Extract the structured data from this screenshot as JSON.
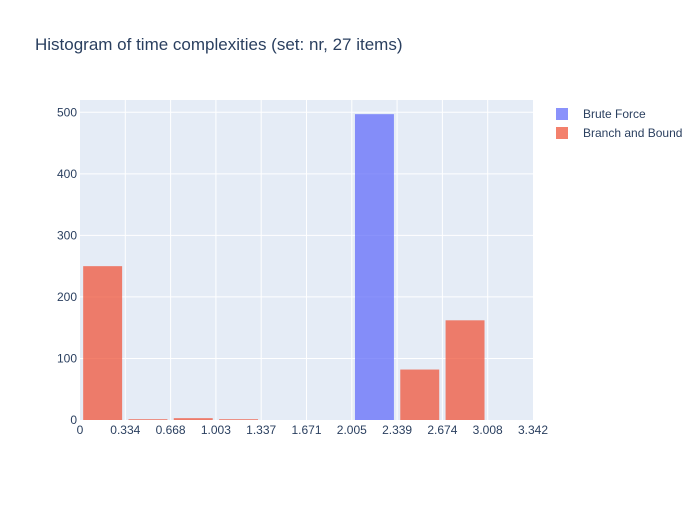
{
  "chart_data": {
    "type": "bar",
    "title": "Histogram of time complexities (set: nr, 27 items)",
    "xlabel": "",
    "ylabel": "",
    "xlim": [
      0,
      3.342
    ],
    "ylim": [
      0,
      520
    ],
    "x_ticks": [
      "0",
      "0.334",
      "0.668",
      "1.003",
      "1.337",
      "1.671",
      "2.005",
      "2.339",
      "2.674",
      "3.008",
      "3.342"
    ],
    "y_ticks": [
      0,
      100,
      200,
      300,
      400,
      500
    ],
    "grid": true,
    "legend_placement": "top-right",
    "bin_width": 0.3342,
    "bin_starts": [
      0,
      0.3342,
      0.6684,
      1.0026,
      1.3368,
      1.671,
      2.0052,
      2.3394,
      2.6736,
      3.0078
    ],
    "series": [
      {
        "name": "Brute Force",
        "color": "#636efa",
        "values": [
          0,
          0,
          0,
          0,
          0,
          0,
          497,
          0,
          0,
          0
        ]
      },
      {
        "name": "Branch and Bound",
        "color": "#ef553b",
        "values": [
          250,
          1,
          3,
          1,
          0,
          0,
          0,
          82,
          162,
          0
        ]
      }
    ]
  }
}
